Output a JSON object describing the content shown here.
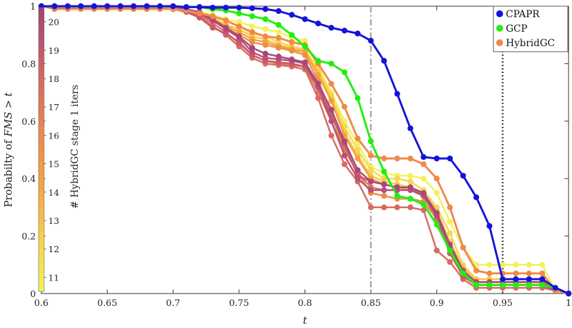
{
  "chart_data": {
    "type": "line",
    "title": "",
    "xlabel": "t",
    "ylabel_parts": [
      "Probabilty of ",
      "FMS",
      " > ",
      "t"
    ],
    "xlim": [
      0.6,
      1.0
    ],
    "ylim": [
      0,
      1
    ],
    "x_ticks": [
      "0.6",
      "0.65",
      "0.7",
      "0.75",
      "0.8",
      "0.85",
      "0.9",
      "0.95",
      "1"
    ],
    "y_ticks": [
      "0",
      "0.2",
      "0.4",
      "0.6",
      "0.8",
      "1"
    ],
    "grid": false,
    "legend_position": "top-right",
    "vertical_lines": [
      {
        "x": 0.85,
        "style": "dash-dot",
        "color": "#aaaaaa"
      },
      {
        "x": 0.95,
        "style": "dotted",
        "color": "#444444"
      }
    ],
    "colorbar": {
      "label": "# HybridGC stage 1 iters",
      "ticks": [
        "11",
        "12",
        "13",
        "14",
        "15",
        "16",
        "17",
        "18",
        "19",
        "20"
      ],
      "range": [
        10.5,
        20.5
      ],
      "colors": [
        "#f2f25a",
        "#f7c84a",
        "#f5a040",
        "#f08a4a",
        "#d86a62",
        "#b85078",
        "#a04270"
      ]
    },
    "x": [
      0.6,
      0.61,
      0.62,
      0.63,
      0.64,
      0.65,
      0.66,
      0.67,
      0.68,
      0.69,
      0.7,
      0.71,
      0.72,
      0.73,
      0.74,
      0.75,
      0.76,
      0.77,
      0.78,
      0.79,
      0.8,
      0.81,
      0.82,
      0.83,
      0.84,
      0.85,
      0.86,
      0.87,
      0.88,
      0.89,
      0.9,
      0.91,
      0.92,
      0.93,
      0.94,
      0.95,
      0.96,
      0.97,
      0.98,
      0.99,
      1.0
    ],
    "series": [
      {
        "name": "CPAPR",
        "color": "#1414d9",
        "width": 3,
        "legend": true,
        "values": [
          1,
          1,
          1,
          1,
          1,
          1,
          1,
          1,
          1,
          1,
          1,
          0.997,
          0.997,
          0.995,
          0.995,
          0.995,
          0.993,
          0.99,
          0.983,
          0.97,
          0.955,
          0.94,
          0.925,
          0.915,
          0.905,
          0.88,
          0.81,
          0.695,
          0.575,
          0.475,
          0.47,
          0.47,
          0.41,
          0.335,
          0.235,
          0.05,
          0.05,
          0.05,
          0.05,
          0.02,
          0
        ]
      },
      {
        "name": "GCP",
        "color": "#22ee10",
        "width": 3,
        "legend": true,
        "values": [
          1,
          1,
          1,
          1,
          1,
          1,
          1,
          1,
          1,
          1,
          1,
          0.997,
          0.997,
          0.99,
          0.985,
          0.975,
          0.965,
          0.955,
          0.935,
          0.9,
          0.86,
          0.81,
          0.8,
          0.77,
          0.68,
          0.53,
          0.425,
          0.34,
          0.33,
          0.31,
          0.24,
          0.15,
          0.07,
          0.03,
          0.03,
          0.03,
          0.03,
          0.03,
          0.03,
          0.02,
          0
        ]
      },
      {
        "name": "HybridGC",
        "color": "#f08a4a",
        "width": 3,
        "legend": true,
        "values": [
          1,
          0.997,
          0.997,
          0.997,
          0.997,
          0.997,
          0.997,
          0.997,
          0.997,
          0.997,
          0.99,
          0.985,
          0.975,
          0.965,
          0.95,
          0.93,
          0.91,
          0.895,
          0.89,
          0.875,
          0.865,
          0.8,
          0.73,
          0.65,
          0.54,
          0.48,
          0.47,
          0.47,
          0.47,
          0.45,
          0.4,
          0.3,
          0.16,
          0.08,
          0.07,
          0.07,
          0.07,
          0.07,
          0.07,
          0.01,
          0
        ]
      },
      {
        "name": "",
        "color": "#f2f25a",
        "width": 2.5,
        "legend": false,
        "values": [
          1,
          0.997,
          0.997,
          0.997,
          0.997,
          0.997,
          0.997,
          0.997,
          0.997,
          0.997,
          0.99,
          0.985,
          0.98,
          0.97,
          0.955,
          0.945,
          0.93,
          0.92,
          0.91,
          0.89,
          0.88,
          0.79,
          0.7,
          0.6,
          0.52,
          0.44,
          0.42,
          0.41,
          0.41,
          0.4,
          0.35,
          0.25,
          0.16,
          0.1,
          0.1,
          0.1,
          0.1,
          0.1,
          0.1,
          0.01,
          0
        ]
      },
      {
        "name": "",
        "color": "#f5d850",
        "width": 2.5,
        "legend": false,
        "values": [
          1,
          0.997,
          0.997,
          0.997,
          0.997,
          0.997,
          0.997,
          0.997,
          0.997,
          0.997,
          0.99,
          0.985,
          0.98,
          0.965,
          0.95,
          0.93,
          0.905,
          0.895,
          0.875,
          0.86,
          0.85,
          0.78,
          0.69,
          0.58,
          0.5,
          0.43,
          0.4,
          0.4,
          0.39,
          0.36,
          0.3,
          0.21,
          0.1,
          0.05,
          0.05,
          0.05,
          0.05,
          0.05,
          0.05,
          0.01,
          0
        ]
      },
      {
        "name": "",
        "color": "#f7c84a",
        "width": 2.5,
        "legend": false,
        "values": [
          1,
          0.997,
          0.997,
          0.997,
          0.997,
          0.997,
          0.997,
          0.997,
          0.997,
          0.997,
          0.99,
          0.985,
          0.975,
          0.96,
          0.935,
          0.92,
          0.895,
          0.885,
          0.865,
          0.855,
          0.845,
          0.77,
          0.68,
          0.56,
          0.48,
          0.41,
          0.39,
          0.38,
          0.37,
          0.35,
          0.29,
          0.18,
          0.09,
          0.05,
          0.05,
          0.05,
          0.05,
          0.05,
          0.05,
          0.01,
          0
        ]
      },
      {
        "name": "",
        "color": "#f5a040",
        "width": 2.5,
        "legend": false,
        "values": [
          1,
          0.995,
          0.995,
          0.995,
          0.995,
          0.995,
          0.995,
          0.995,
          0.995,
          0.995,
          0.99,
          0.985,
          0.975,
          0.955,
          0.93,
          0.91,
          0.885,
          0.875,
          0.86,
          0.85,
          0.84,
          0.76,
          0.67,
          0.55,
          0.47,
          0.4,
          0.38,
          0.37,
          0.36,
          0.34,
          0.28,
          0.17,
          0.08,
          0.04,
          0.04,
          0.04,
          0.04,
          0.04,
          0.04,
          0.01,
          0
        ]
      },
      {
        "name": "",
        "color": "#ec8e48",
        "width": 2.5,
        "legend": false,
        "values": [
          1,
          0.99,
          0.99,
          0.99,
          0.99,
          0.99,
          0.99,
          0.99,
          0.99,
          0.99,
          0.99,
          0.98,
          0.97,
          0.95,
          0.925,
          0.9,
          0.875,
          0.865,
          0.855,
          0.845,
          0.83,
          0.74,
          0.63,
          0.5,
          0.42,
          0.35,
          0.34,
          0.33,
          0.33,
          0.32,
          0.26,
          0.15,
          0.07,
          0.04,
          0.04,
          0.04,
          0.04,
          0.04,
          0.04,
          0.01,
          0
        ]
      },
      {
        "name": "",
        "color": "#e07858",
        "width": 2.5,
        "legend": false,
        "values": [
          1,
          0.995,
          0.995,
          0.995,
          0.995,
          0.995,
          0.995,
          0.995,
          0.995,
          0.995,
          0.99,
          0.985,
          0.97,
          0.94,
          0.91,
          0.87,
          0.83,
          0.81,
          0.8,
          0.795,
          0.79,
          0.7,
          0.6,
          0.5,
          0.42,
          0.37,
          0.36,
          0.36,
          0.36,
          0.34,
          0.26,
          0.14,
          0.06,
          0.03,
          0.03,
          0.03,
          0.03,
          0.03,
          0.03,
          0.01,
          0
        ]
      },
      {
        "name": "",
        "color": "#d86a62",
        "width": 2.5,
        "legend": false,
        "values": [
          1,
          0.995,
          0.995,
          0.995,
          0.995,
          0.995,
          0.995,
          0.995,
          0.995,
          0.995,
          0.99,
          0.985,
          0.965,
          0.93,
          0.9,
          0.86,
          0.82,
          0.8,
          0.795,
          0.79,
          0.78,
          0.68,
          0.55,
          0.45,
          0.39,
          0.3,
          0.3,
          0.3,
          0.3,
          0.29,
          0.15,
          0.11,
          0.05,
          0.02,
          0.02,
          0.02,
          0.02,
          0.02,
          0.02,
          0.01,
          0
        ]
      },
      {
        "name": "",
        "color": "#c85a6c",
        "width": 2.5,
        "legend": false,
        "values": [
          1,
          0.995,
          0.995,
          0.995,
          0.995,
          0.995,
          0.995,
          0.995,
          0.995,
          0.995,
          0.99,
          0.98,
          0.96,
          0.925,
          0.905,
          0.875,
          0.83,
          0.81,
          0.805,
          0.8,
          0.79,
          0.72,
          0.62,
          0.52,
          0.41,
          0.39,
          0.38,
          0.37,
          0.37,
          0.34,
          0.27,
          0.14,
          0.06,
          0.03,
          0.03,
          0.03,
          0.03,
          0.03,
          0.03,
          0.01,
          0
        ]
      },
      {
        "name": "",
        "color": "#b85078",
        "width": 2.5,
        "legend": false,
        "values": [
          1,
          0.997,
          0.997,
          0.997,
          0.997,
          0.997,
          0.997,
          0.997,
          0.997,
          0.997,
          0.99,
          0.985,
          0.975,
          0.95,
          0.92,
          0.89,
          0.84,
          0.82,
          0.815,
          0.81,
          0.8,
          0.72,
          0.6,
          0.48,
          0.4,
          0.36,
          0.36,
          0.36,
          0.36,
          0.34,
          0.27,
          0.16,
          0.07,
          0.03,
          0.03,
          0.03,
          0.03,
          0.03,
          0.03,
          0.01,
          0
        ]
      },
      {
        "name": "",
        "color": "#a8487a",
        "width": 2.5,
        "legend": false,
        "values": [
          1,
          0.997,
          0.997,
          0.997,
          0.997,
          0.997,
          0.997,
          0.997,
          0.997,
          0.997,
          0.995,
          0.99,
          0.98,
          0.955,
          0.925,
          0.895,
          0.855,
          0.835,
          0.825,
          0.815,
          0.805,
          0.73,
          0.64,
          0.53,
          0.43,
          0.39,
          0.38,
          0.37,
          0.37,
          0.35,
          0.28,
          0.17,
          0.08,
          0.04,
          0.04,
          0.04,
          0.04,
          0.04,
          0.04,
          0.01,
          0
        ]
      }
    ]
  }
}
